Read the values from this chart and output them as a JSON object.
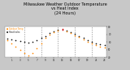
{
  "title": "Milwaukee Weather Outdoor Temperature\nvs Heat Index\n(24 Hours)",
  "title_fontsize": 3.5,
  "bg_color": "#c8c8c8",
  "plot_bg_color": "#ffffff",
  "temp_color": "#ff8800",
  "heat_color": "#111111",
  "peak_color": "#cc0000",
  "grid_color": "#888888",
  "hours": [
    0,
    1,
    2,
    3,
    4,
    5,
    6,
    7,
    8,
    9,
    10,
    11,
    12,
    13,
    14,
    15,
    16,
    17,
    18,
    19,
    20,
    21,
    22,
    23
  ],
  "temp": [
    62,
    58,
    54,
    50,
    46,
    42,
    46,
    52,
    58,
    65,
    70,
    73,
    75,
    76,
    74,
    72,
    69,
    66,
    63,
    60,
    58,
    56,
    54,
    53
  ],
  "heat": [
    64,
    63,
    62,
    61,
    60,
    59,
    60,
    62,
    65,
    68,
    72,
    74,
    76,
    77,
    75,
    73,
    71,
    68,
    65,
    62,
    60,
    58,
    57,
    56
  ],
  "ylim": [
    40,
    80
  ],
  "yticks": [
    40,
    50,
    60,
    70,
    80
  ],
  "ytick_labels": [
    "40",
    "50",
    "60",
    "70",
    "80"
  ],
  "vgrid_positions": [
    4,
    8,
    12,
    16,
    20
  ],
  "peak_temp_hour": 13,
  "peak_heat_hour": 13
}
